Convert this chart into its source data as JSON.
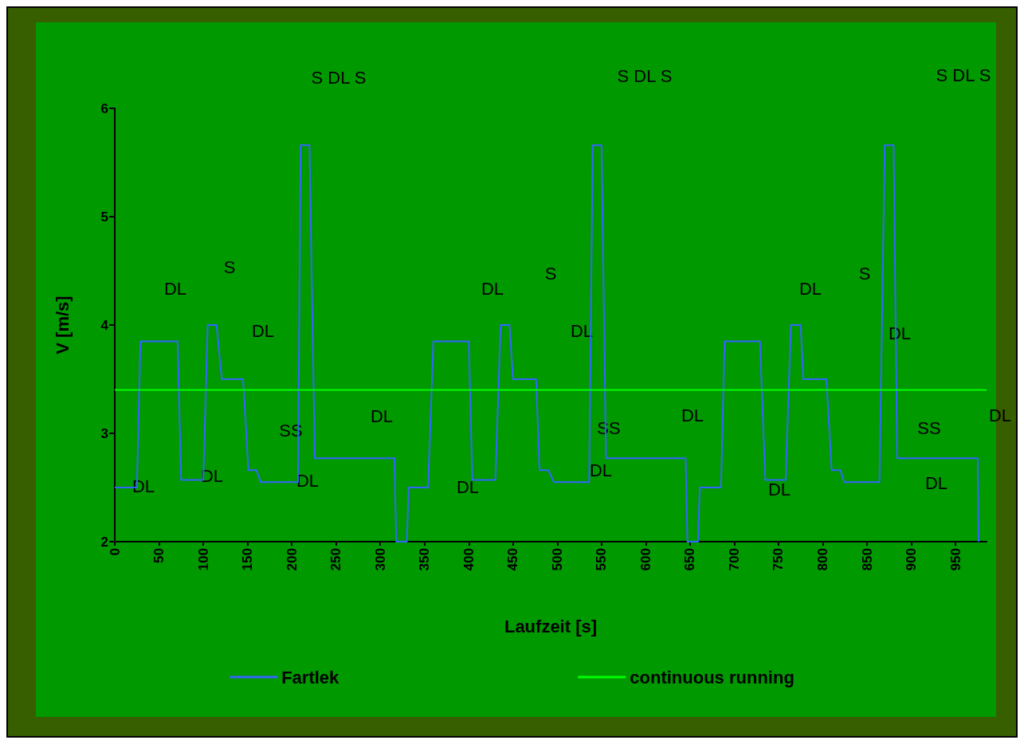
{
  "chart_data": {
    "type": "line",
    "xlabel": "Laufzeit [s]",
    "ylabel": "V [m/s]",
    "xlim": [
      0,
      985
    ],
    "xticks": [
      0,
      50,
      100,
      150,
      200,
      250,
      300,
      350,
      400,
      450,
      500,
      550,
      600,
      650,
      700,
      750,
      800,
      850,
      900,
      950
    ],
    "ylim": [
      2,
      6
    ],
    "yticks": [
      2,
      3,
      4,
      5,
      6
    ],
    "grid": false,
    "legend": "bottom",
    "marker": "none",
    "line_style": "solid",
    "series": [
      {
        "name": "Fartlek",
        "color": "#3366ff",
        "x": [
          0,
          25,
          29,
          71,
          75,
          100,
          105,
          115,
          121,
          145,
          151,
          160,
          165,
          207,
          210,
          220,
          226,
          316,
          318,
          330,
          332,
          354,
          360,
          400,
          404,
          430,
          436,
          446,
          450,
          476,
          480,
          490,
          496,
          536,
          540,
          550,
          555,
          645,
          647,
          659,
          661,
          685,
          689,
          729,
          735,
          758,
          764,
          775,
          778,
          804,
          810,
          820,
          824,
          864,
          870,
          880,
          884,
          975,
          976
        ],
        "values": [
          2.5,
          2.5,
          3.85,
          3.85,
          2.57,
          2.57,
          4,
          4,
          3.5,
          3.5,
          2.66,
          2.66,
          2.55,
          2.55,
          5.66,
          5.66,
          2.77,
          2.77,
          2,
          2,
          2.5,
          2.5,
          3.85,
          3.85,
          2.57,
          2.57,
          4,
          4,
          3.5,
          3.5,
          2.66,
          2.66,
          2.55,
          2.55,
          5.66,
          5.66,
          2.77,
          2.77,
          2,
          2,
          2.5,
          2.5,
          3.85,
          3.85,
          2.57,
          2.57,
          4,
          4,
          3.5,
          3.5,
          2.66,
          2.66,
          2.55,
          2.55,
          5.66,
          5.66,
          2.77,
          2.77,
          2
        ]
      },
      {
        "name": "continuous running",
        "color": "#00ff00",
        "x": [
          0,
          985
        ],
        "values": [
          3.4,
          3.4
        ]
      }
    ],
    "annotations": [
      "DL",
      "DL",
      "S",
      "DL",
      "SS",
      "DL",
      "DL",
      "DL",
      "S DL S",
      "DL",
      "DL",
      "S",
      "DL",
      "SS",
      "DL",
      "DL",
      "S DL S",
      "DL",
      "S",
      "DL",
      "SS",
      "DL",
      "DL",
      "DL",
      "S DL S"
    ]
  }
}
